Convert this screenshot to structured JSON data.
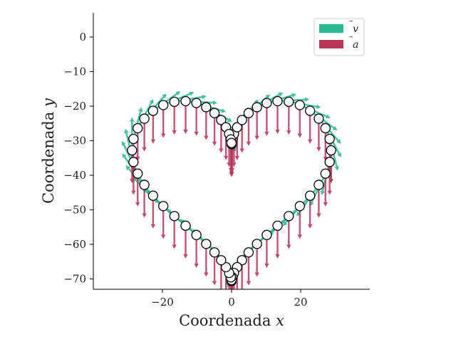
{
  "chart_data": {
    "type": "quiver",
    "xlabel": "Coordenada x",
    "ylabel": "Coordenada y",
    "xlabel_parts": {
      "word": "Coordenada",
      "var": "x"
    },
    "ylabel_parts": {
      "word": "Coordenada",
      "var": "y"
    },
    "xlim": [
      -40,
      40
    ],
    "ylim": [
      -73,
      7
    ],
    "xticks": [
      -20,
      0,
      20
    ],
    "xtick_labels": [
      "−20",
      "0",
      "20"
    ],
    "yticks": [
      0,
      -10,
      -20,
      -30,
      -40,
      -50,
      -60,
      -70
    ],
    "ytick_labels": [
      "0",
      "−10",
      "−20",
      "−30",
      "−40",
      "−50",
      "−60",
      "−70"
    ],
    "grid": false,
    "legend_position": "top-right",
    "curve": {
      "description_of_points": "heart parametric curve",
      "x_formula": "16 sin(t)^3 * 1.8",
      "y_formula": "(13 cos t - 5 cos 2t - 2 cos 3t - cos 4t) * 1.8 - 40",
      "point_count": 64
    },
    "series": [
      {
        "name": "⃗v",
        "label": "v",
        "color": "#2cb894"
      },
      {
        "name": "⃗a",
        "label": "a",
        "color": "#b8365a"
      }
    ]
  }
}
